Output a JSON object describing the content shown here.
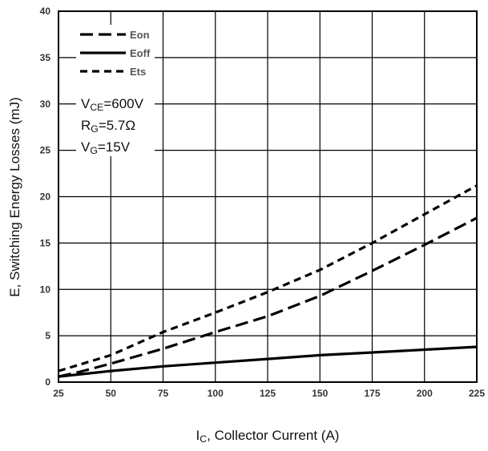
{
  "chart_data": {
    "type": "line",
    "xlabel": {
      "main": "I",
      "sub": "C",
      "rest": ", Collector Current (A)"
    },
    "ylabel": "E, Switching Energy Losses (mJ)",
    "xlim": [
      25,
      225
    ],
    "ylim": [
      0,
      40
    ],
    "x_ticks": [
      "25",
      "50",
      "75",
      "100",
      "125",
      "150",
      "175",
      "200",
      "225"
    ],
    "y_ticks": [
      "0",
      "5",
      "10",
      "15",
      "20",
      "25",
      "30",
      "35",
      "40"
    ],
    "grid": true,
    "legend_position": "top-left",
    "series": [
      {
        "name": "Eon",
        "dash": "long-dash",
        "x": [
          25,
          35,
          50,
          75,
          100,
          125,
          150,
          175,
          200,
          225
        ],
        "y": [
          0.6,
          1.1,
          2.0,
          3.6,
          5.4,
          7.1,
          9.3,
          12.0,
          14.8,
          17.7
        ]
      },
      {
        "name": "Eoff",
        "dash": "solid",
        "x": [
          25,
          50,
          75,
          100,
          125,
          150,
          175,
          200,
          225
        ],
        "y": [
          0.6,
          1.2,
          1.7,
          2.1,
          2.5,
          2.9,
          3.2,
          3.5,
          3.8
        ]
      },
      {
        "name": "Ets",
        "dash": "short-dash",
        "x": [
          25,
          50,
          75,
          100,
          125,
          150,
          175,
          200,
          225
        ],
        "y": [
          1.2,
          2.9,
          5.4,
          7.5,
          9.7,
          12.1,
          15.0,
          18.1,
          21.2
        ]
      }
    ],
    "annotations": [
      {
        "main": "V",
        "sub": "CE",
        "rest": "=600V"
      },
      {
        "main": "R",
        "sub": "G",
        "rest": "=5.7Ω"
      },
      {
        "main": "V",
        "sub": "G",
        "rest": "=15V"
      }
    ]
  }
}
